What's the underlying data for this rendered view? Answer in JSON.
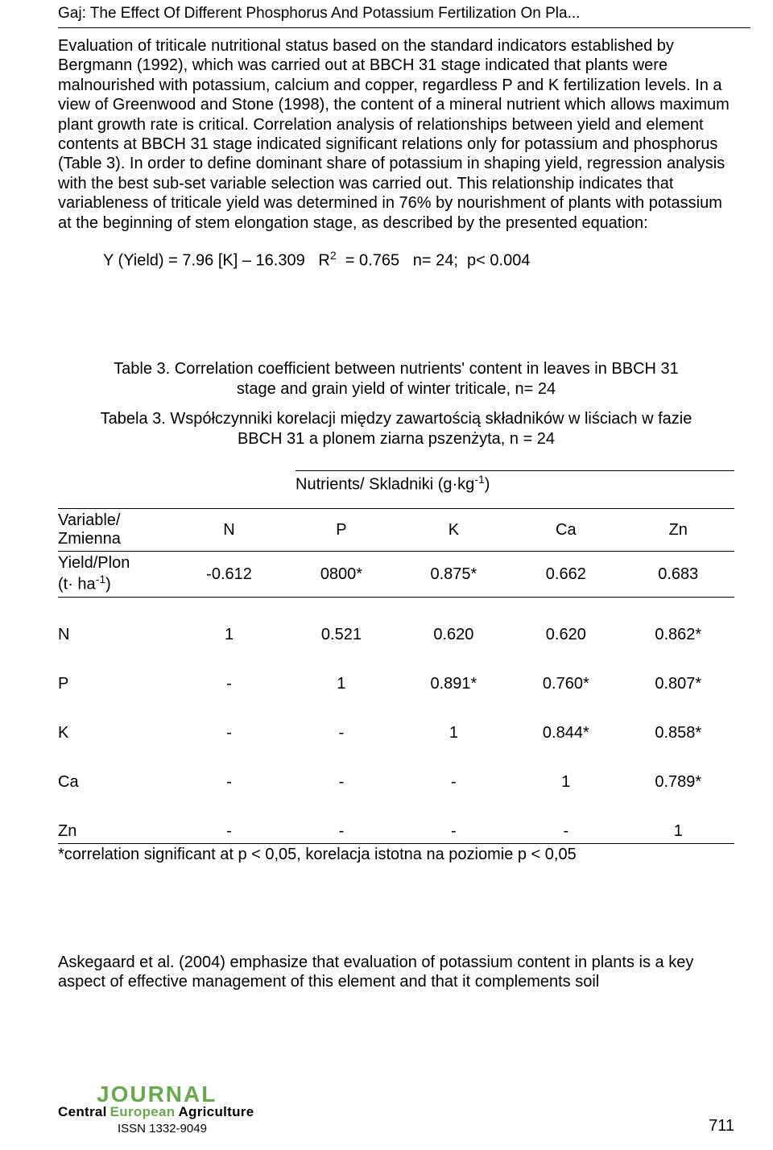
{
  "running_head": "Gaj: The Effect Of Different Phosphorus And Potassium Fertilization On Pla...",
  "body_text": "Evaluation of triticale nutritional status based on the standard indicators established by Bergmann (1992), which was carried out at BBCH 31 stage indicated that plants were malnourished with potassium, calcium and copper, regardless P and K fertilization levels. In a view of Greenwood and Stone (1998), the content of a mineral nutrient which allows maximum plant growth rate is critical. Correlation analysis of relationships between yield and element contents at BBCH 31 stage indicated significant relations only for potassium and phosphorus (Table 3). In order to define dominant share of potassium in shaping yield, regression analysis with the best sub-set variable selection was carried out. This relationship indicates that variableness of triticale yield was determined in 76% by nourishment of plants with potassium at the beginning of stem elongation stage, as described by the presented equation:",
  "equation": {
    "lhs": "Y (Yield) = 7.96 [K] – 16.309",
    "r2_label": "R",
    "r2_sup": "2",
    "r2_val": " = 0.765",
    "n": "n= 24;",
    "p": "p< 0.004"
  },
  "table": {
    "caption_en_1": "Table 3. Correlation coefficient between nutrients' content in leaves in BBCH 31",
    "caption_en_2": "stage and grain yield of winter triticale, n= 24",
    "caption_pl_1": "Tabela 3. Współczynniki korelacji między zawartością składników w liściach w fazie",
    "caption_pl_2": "BBCH 31 a plonem ziarna pszenżyta,  n = 24",
    "nutrients_label": "Nutrients/ Skladniki (g·kg",
    "nutrients_sup": "-1",
    "nutrients_close": ")",
    "var_label_1": "Variable/",
    "var_label_2": "Zmienna",
    "cols": [
      "N",
      "P",
      "K",
      "Ca",
      "Zn"
    ],
    "yield_label_1": "Yield/Plon",
    "yield_label_2a": "(t· ha",
    "yield_label_2b": "-1",
    "yield_label_2c": ")",
    "rows": {
      "yield": [
        "-0.612",
        "0800*",
        "0.875*",
        "0.662",
        "0.683"
      ],
      "N": [
        "1",
        "0.521",
        "0.620",
        "0.620",
        "0.862*"
      ],
      "P": [
        "-",
        "1",
        "0.891*",
        "0.760*",
        "0.807*"
      ],
      "K": [
        "-",
        "-",
        "1",
        "0.844*",
        "0.858*"
      ],
      "Ca": [
        "-",
        "-",
        "-",
        "1",
        "0.789*"
      ],
      "Zn": [
        "-",
        "-",
        "-",
        "-",
        "1"
      ]
    },
    "row_labels": {
      "N": "N",
      "P": "P",
      "K": "K",
      "Ca": "Ca",
      "Zn": "Zn"
    },
    "footnote": "*correlation significant at p < 0,05, korelacja istotna na poziomie p < 0,05"
  },
  "concluding": "Askegaard et al. (2004) emphasize that evaluation of potassium content in plants is a key aspect of effective management of this element and that it complements soil",
  "footer": {
    "journal": "JOURNAL",
    "cea_1": "Central",
    "cea_2": "European",
    "cea_3": "Agriculture",
    "issn": "ISSN 1332-9049",
    "page": "711"
  },
  "colors": {
    "text": "#000000",
    "green": "#6aa84f",
    "bg": "#ffffff"
  }
}
